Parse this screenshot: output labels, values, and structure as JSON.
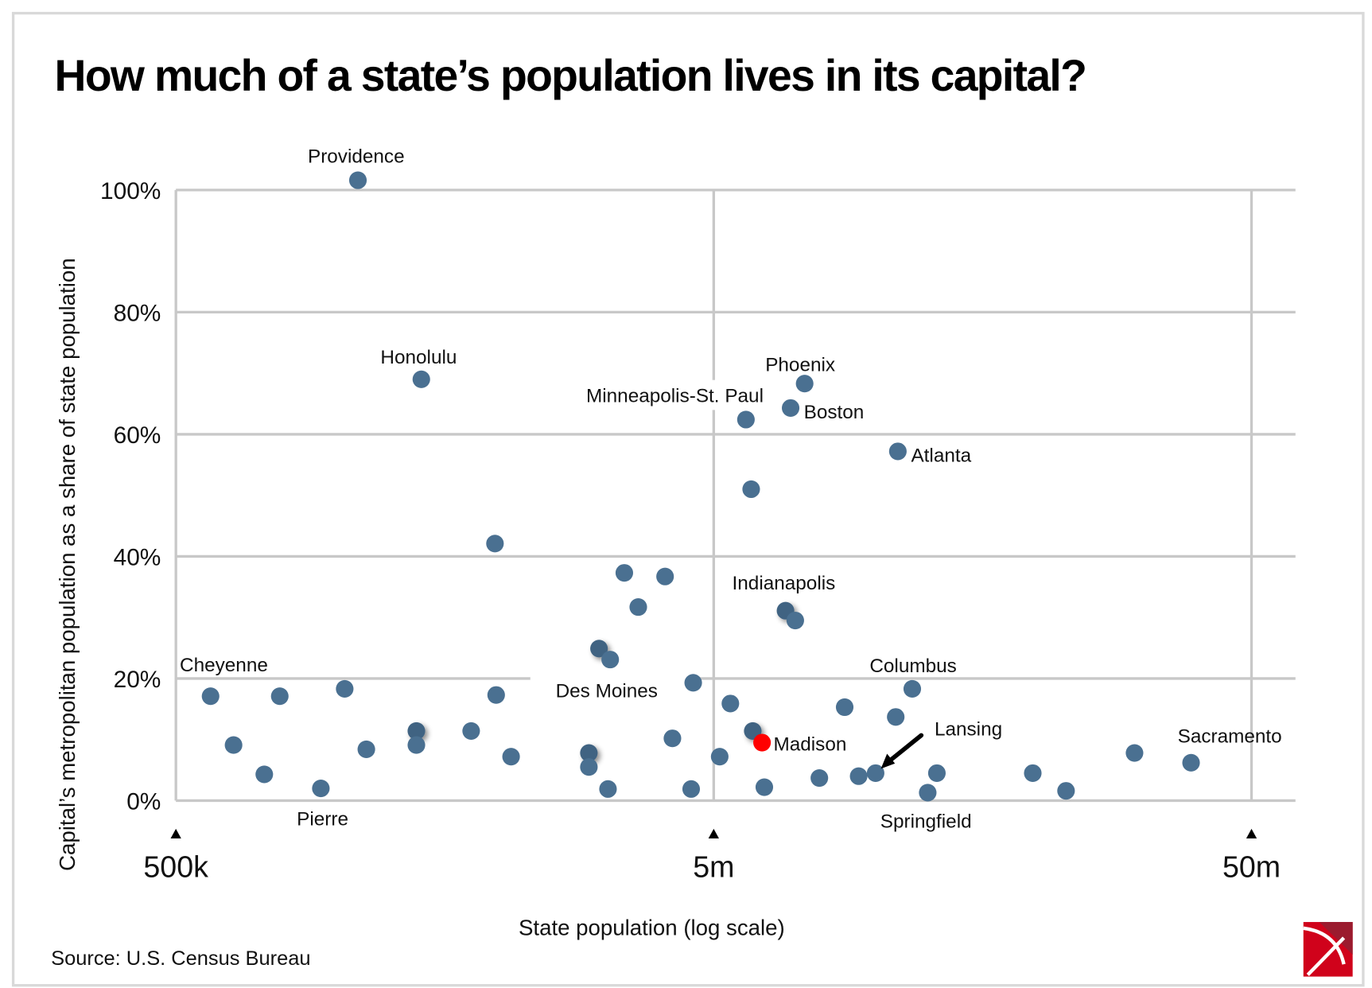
{
  "chart_data": {
    "type": "scatter",
    "title": "How much of a state’s population lives in its capital?",
    "xlabel": "State population (log scale)",
    "ylabel": "Capital’s metropolitan population as a share of state population",
    "x_scale": "log",
    "xlim_millions": [
      0.5,
      50
    ],
    "ylim": [
      0,
      100
    ],
    "x_ticks": [
      {
        "value": 0.5,
        "label": "500k"
      },
      {
        "value": 5,
        "label": "5m"
      },
      {
        "value": 50,
        "label": "50m"
      }
    ],
    "y_ticks": [
      {
        "value": 0,
        "label": "0%"
      },
      {
        "value": 20,
        "label": "20%"
      },
      {
        "value": 40,
        "label": "40%"
      },
      {
        "value": 60,
        "label": "60%"
      },
      {
        "value": 80,
        "label": "80%"
      },
      {
        "value": 100,
        "label": "100%"
      }
    ],
    "grid": true,
    "source": "Source: U.S. Census Bureau",
    "colors": {
      "point": "#4a7091",
      "highlight": "#ff0000",
      "grid": "#c8c8c8",
      "frame": "#d9d9d9",
      "logo_red": "#d0021b",
      "logo_dark": "#9b1b2e"
    },
    "points": [
      {
        "label": "Providence",
        "x": 1.09,
        "y": 101.6
      },
      {
        "label": "Honolulu",
        "x": 1.43,
        "y": 69.0
      },
      {
        "label": "",
        "x": 1.96,
        "y": 42.1
      },
      {
        "label": "",
        "x": 3.41,
        "y": 37.3
      },
      {
        "label": "",
        "x": 4.06,
        "y": 36.7
      },
      {
        "label": "",
        "x": 3.62,
        "y": 31.7
      },
      {
        "label": "",
        "x": 3.06,
        "y": 24.9,
        "overlap": true
      },
      {
        "label": "",
        "x": 3.21,
        "y": 23.1
      },
      {
        "label": "Minneapolis-St. Paul",
        "x": 5.74,
        "y": 62.4
      },
      {
        "label": "Boston",
        "x": 6.95,
        "y": 64.3
      },
      {
        "label": "Phoenix",
        "x": 7.38,
        "y": 68.3
      },
      {
        "label": "Atlanta",
        "x": 11.0,
        "y": 57.2
      },
      {
        "label": "",
        "x": 5.87,
        "y": 51.0
      },
      {
        "label": "Indianapolis",
        "x": 6.8,
        "y": 31.1,
        "overlap": true
      },
      {
        "label": "",
        "x": 7.09,
        "y": 29.5
      },
      {
        "label": "Cheyenne",
        "x": 0.58,
        "y": 17.1
      },
      {
        "label": "",
        "x": 0.78,
        "y": 17.1
      },
      {
        "label": "",
        "x": 1.03,
        "y": 18.3
      },
      {
        "label": "",
        "x": 0.64,
        "y": 9.1
      },
      {
        "label": "",
        "x": 0.73,
        "y": 4.3
      },
      {
        "label": "Pierre",
        "x": 0.93,
        "y": 2.0
      },
      {
        "label": "",
        "x": 1.13,
        "y": 8.4
      },
      {
        "label": "",
        "x": 1.4,
        "y": 11.4,
        "overlap": true
      },
      {
        "label": "",
        "x": 1.4,
        "y": 9.1
      },
      {
        "label": "",
        "x": 1.77,
        "y": 11.4
      },
      {
        "label": "",
        "x": 1.97,
        "y": 17.3
      },
      {
        "label": "",
        "x": 2.1,
        "y": 7.2
      },
      {
        "label": "Des Moines",
        "x": 3.21,
        "y": 23.1,
        "label_only": true
      },
      {
        "label": "",
        "x": 2.93,
        "y": 7.8,
        "overlap": true
      },
      {
        "label": "",
        "x": 2.93,
        "y": 5.5
      },
      {
        "label": "",
        "x": 3.18,
        "y": 1.9
      },
      {
        "label": "",
        "x": 4.19,
        "y": 10.2
      },
      {
        "label": "",
        "x": 4.58,
        "y": 19.3
      },
      {
        "label": "",
        "x": 4.54,
        "y": 1.9
      },
      {
        "label": "",
        "x": 5.13,
        "y": 7.2
      },
      {
        "label": "",
        "x": 5.37,
        "y": 15.9
      },
      {
        "label": "",
        "x": 5.91,
        "y": 11.4,
        "overlap": true
      },
      {
        "label": "Madison",
        "x": 6.15,
        "y": 9.5,
        "highlight": true
      },
      {
        "label": "",
        "x": 6.21,
        "y": 2.2
      },
      {
        "label": "",
        "x": 7.86,
        "y": 3.7
      },
      {
        "label": "",
        "x": 8.76,
        "y": 15.3
      },
      {
        "label": "",
        "x": 9.3,
        "y": 4.0
      },
      {
        "label": "Lansing",
        "x": 10.0,
        "y": 4.5,
        "arrow": true
      },
      {
        "label": "",
        "x": 10.9,
        "y": 13.7
      },
      {
        "label": "Columbus",
        "x": 11.7,
        "y": 18.3
      },
      {
        "label": "Springfield",
        "x": 12.5,
        "y": 1.3
      },
      {
        "label": "",
        "x": 13.0,
        "y": 4.5
      },
      {
        "label": "",
        "x": 19.6,
        "y": 4.5
      },
      {
        "label": "",
        "x": 22.6,
        "y": 1.6
      },
      {
        "label": "",
        "x": 30.3,
        "y": 7.8
      },
      {
        "label": "Sacramento",
        "x": 38.6,
        "y": 6.2
      }
    ]
  }
}
